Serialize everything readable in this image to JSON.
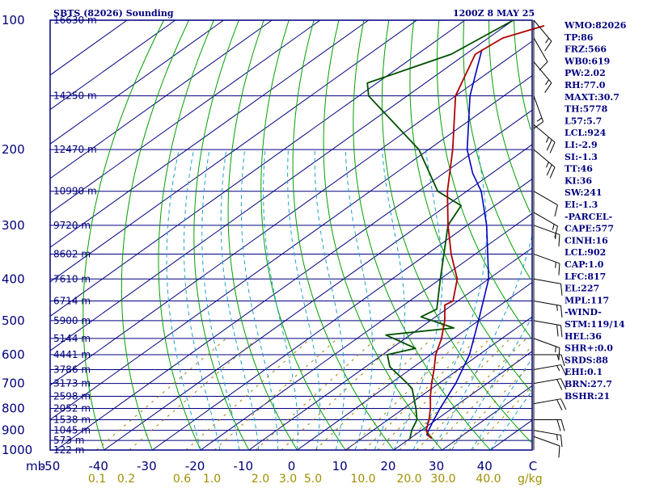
{
  "header": {
    "left": "SBTS (82026) Sounding",
    "right": "1200Z  8 MAY 25"
  },
  "colors": {
    "frame": "#000080",
    "isobar": "#000080",
    "isotherm": "#000080",
    "dry_adiabat": "#00a000",
    "moist_adiabat": "#1fa0c8",
    "mixing_ratio": "#a08000",
    "temperature": "#b00000",
    "dewpoint": "#005000",
    "parcel": "#0000c0",
    "wind": "#000000"
  },
  "chart_data": {
    "type": "skew-t",
    "pressure_axis": {
      "unit": "mb",
      "ticks": [
        "100",
        "200",
        "300",
        "400",
        "500",
        "600",
        "700",
        "800",
        "900",
        "1000"
      ]
    },
    "temperature_axis": {
      "unit": "C",
      "ticks": [
        "-50",
        "-40",
        "-30",
        "-20",
        "-10",
        "0",
        "10",
        "20",
        "30",
        "40",
        "C"
      ]
    },
    "mixing_ratio_axis": {
      "unit": "g/kg",
      "ticks": [
        "0.1",
        "0.2",
        "0.6",
        "1.0",
        "2.0",
        "3.0",
        "5.0",
        "10.0",
        "20.0",
        "30.0",
        "40.0"
      ]
    },
    "height_labels": [
      {
        "p": 100,
        "label": "16630 m"
      },
      {
        "p": 150,
        "label": "14250 m"
      },
      {
        "p": 200,
        "label": "12470 m"
      },
      {
        "p": 250,
        "label": "10990 m"
      },
      {
        "p": 300,
        "label": "9720 m"
      },
      {
        "p": 350,
        "label": "8602 m"
      },
      {
        "p": 400,
        "label": "7610 m"
      },
      {
        "p": 450,
        "label": "6714 m"
      },
      {
        "p": 500,
        "label": "5900 m"
      },
      {
        "p": 550,
        "label": "5144 m"
      },
      {
        "p": 600,
        "label": "4441 m"
      },
      {
        "p": 650,
        "label": "3786 m"
      },
      {
        "p": 700,
        "label": "3173 m"
      },
      {
        "p": 750,
        "label": "2598 m"
      },
      {
        "p": 800,
        "label": "2052 m"
      },
      {
        "p": 850,
        "label": "1538 m"
      },
      {
        "p": 900,
        "label": "1045 m"
      },
      {
        "p": 950,
        "label": "573 m"
      },
      {
        "p": 1000,
        "label": "122 m"
      }
    ],
    "temperature_profile": [
      {
        "p": 940,
        "t": 24.5
      },
      {
        "p": 925,
        "t": 23.0
      },
      {
        "p": 900,
        "t": 21.0
      },
      {
        "p": 850,
        "t": 18.5
      },
      {
        "p": 800,
        "t": 15.5
      },
      {
        "p": 750,
        "t": 12.0
      },
      {
        "p": 700,
        "t": 8.5
      },
      {
        "p": 650,
        "t": 5.0
      },
      {
        "p": 600,
        "t": 1.0
      },
      {
        "p": 550,
        "t": -2.5
      },
      {
        "p": 500,
        "t": -7.0
      },
      {
        "p": 460,
        "t": -11.5
      },
      {
        "p": 450,
        "t": -11.0
      },
      {
        "p": 400,
        "t": -16.5
      },
      {
        "p": 350,
        "t": -25.0
      },
      {
        "p": 300,
        "t": -34.0
      },
      {
        "p": 250,
        "t": -44.0
      },
      {
        "p": 200,
        "t": -55.0
      },
      {
        "p": 150,
        "t": -70.0
      },
      {
        "p": 120,
        "t": -78.0
      },
      {
        "p": 110,
        "t": -77.0
      },
      {
        "p": 103,
        "t": -72.0
      }
    ],
    "dewpoint_profile": [
      {
        "p": 940,
        "td": 20.0
      },
      {
        "p": 900,
        "td": 18.0
      },
      {
        "p": 850,
        "td": 16.0
      },
      {
        "p": 800,
        "td": 12.5
      },
      {
        "p": 720,
        "td": 6.0
      },
      {
        "p": 700,
        "td": 3.5
      },
      {
        "p": 640,
        "td": -5.0
      },
      {
        "p": 600,
        "td": -9.0
      },
      {
        "p": 580,
        "td": -5.0
      },
      {
        "p": 540,
        "td": -15.0
      },
      {
        "p": 520,
        "td": -3.0
      },
      {
        "p": 490,
        "td": -13.0
      },
      {
        "p": 470,
        "td": -12.0
      },
      {
        "p": 400,
        "td": -20.0
      },
      {
        "p": 300,
        "td": -34.0
      },
      {
        "p": 270,
        "td": -37.0
      },
      {
        "p": 250,
        "td": -46.0
      },
      {
        "p": 200,
        "td": -62.0
      },
      {
        "p": 150,
        "td": -88.0
      },
      {
        "p": 140,
        "td": -92.0
      },
      {
        "p": 120,
        "td": -83.0
      },
      {
        "p": 100,
        "td": -80.0
      }
    ],
    "parcel_profile": [
      {
        "p": 940,
        "t": 24.5
      },
      {
        "p": 920,
        "t": 22.3
      },
      {
        "p": 900,
        "t": 21.5
      },
      {
        "p": 850,
        "t": 19.5
      },
      {
        "p": 800,
        "t": 17.5
      },
      {
        "p": 700,
        "t": 13.5
      },
      {
        "p": 600,
        "t": 8.0
      },
      {
        "p": 500,
        "t": 0.0
      },
      {
        "p": 400,
        "t": -10.0
      },
      {
        "p": 300,
        "t": -26.0
      },
      {
        "p": 250,
        "t": -37.0
      },
      {
        "p": 227,
        "t": -44.0
      },
      {
        "p": 200,
        "t": -52.0
      },
      {
        "p": 150,
        "t": -67.0
      },
      {
        "p": 117,
        "t": -78.0
      }
    ],
    "winds": [
      {
        "p": 930,
        "dir": 110,
        "spd": 10
      },
      {
        "p": 900,
        "dir": 100,
        "spd": 15
      },
      {
        "p": 850,
        "dir": 90,
        "spd": 20
      },
      {
        "p": 780,
        "dir": 80,
        "spd": 20
      },
      {
        "p": 700,
        "dir": 80,
        "spd": 20
      },
      {
        "p": 650,
        "dir": 80,
        "spd": 15
      },
      {
        "p": 600,
        "dir": 90,
        "spd": 15
      },
      {
        "p": 550,
        "dir": 110,
        "spd": 15
      },
      {
        "p": 500,
        "dir": 100,
        "spd": 20
      },
      {
        "p": 450,
        "dir": 100,
        "spd": 15
      },
      {
        "p": 400,
        "dir": 100,
        "spd": 10
      },
      {
        "p": 350,
        "dir": 110,
        "spd": 15
      },
      {
        "p": 300,
        "dir": 110,
        "spd": 15
      },
      {
        "p": 280,
        "dir": 120,
        "spd": 15
      },
      {
        "p": 250,
        "dir": 120,
        "spd": 10
      },
      {
        "p": 200,
        "dir": 130,
        "spd": 25
      },
      {
        "p": 175,
        "dir": 130,
        "spd": 25
      },
      {
        "p": 150,
        "dir": 160,
        "spd": 15
      },
      {
        "p": 125,
        "dir": 140,
        "spd": 15
      },
      {
        "p": 110,
        "dir": 150,
        "spd": 10
      },
      {
        "p": 100,
        "dir": 140,
        "spd": 15
      }
    ]
  },
  "indices": [
    "WMO:82026",
    "TP:86",
    "FRZ:566",
    "WB0:619",
    "PW:2.02",
    "RH:77.0",
    "MAXT:30.7",
    "TH:5778",
    "L57:5.7",
    "LCL:924",
    "LI:-2.9",
    "SI:-1.3",
    "TT:46",
    "KI:36",
    "SW:241",
    "EI:-1.3",
    "-PARCEL-",
    "CAPE:577",
    "CINH:16",
    "LCL:902",
    "CAP:1.0",
    "LFC:817",
    "EL:227",
    "MPL:117",
    "-WIND-",
    "STM:119/14",
    "HEL:36",
    "SHR+:0.0",
    "SRDS:88",
    "EHI:0.1",
    "BRN:27.7",
    "BSHR:21"
  ]
}
